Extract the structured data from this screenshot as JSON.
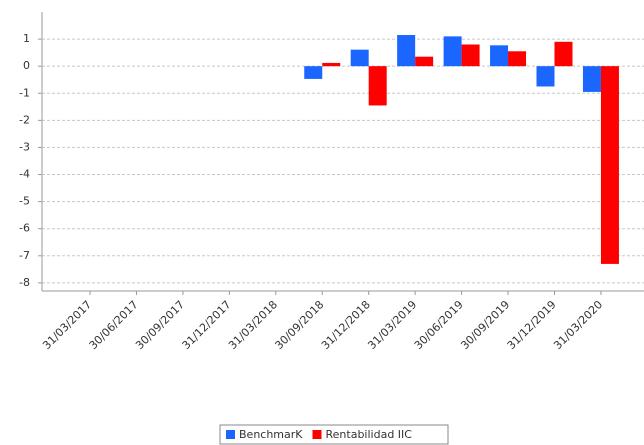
{
  "chart_data": {
    "type": "bar",
    "categories": [
      "31/03/2017",
      "30/06/2017",
      "30/09/2017",
      "31/12/2017",
      "31/03/2018",
      "30/09/2018",
      "31/12/2018",
      "31/03/2019",
      "30/06/2019",
      "30/09/2019",
      "31/12/2019",
      "31/03/2020"
    ],
    "series": [
      {
        "name": "BenchmarK",
        "color": "#1a66ff",
        "values": [
          null,
          null,
          null,
          null,
          null,
          -0.47,
          0.61,
          1.15,
          1.1,
          0.77,
          -0.75,
          -0.95
        ]
      },
      {
        "name": "Rentabilidad IIC",
        "color": "#ff0000",
        "values": [
          null,
          null,
          null,
          null,
          null,
          0.12,
          -1.45,
          0.35,
          0.8,
          0.55,
          0.9,
          -7.3
        ]
      }
    ],
    "ylim": [
      -8.3,
      2
    ],
    "yticks": [
      1,
      0,
      -1,
      -2,
      -3,
      -4,
      -5,
      -6,
      -7,
      -8
    ],
    "grid": true,
    "legend": "bottom"
  }
}
